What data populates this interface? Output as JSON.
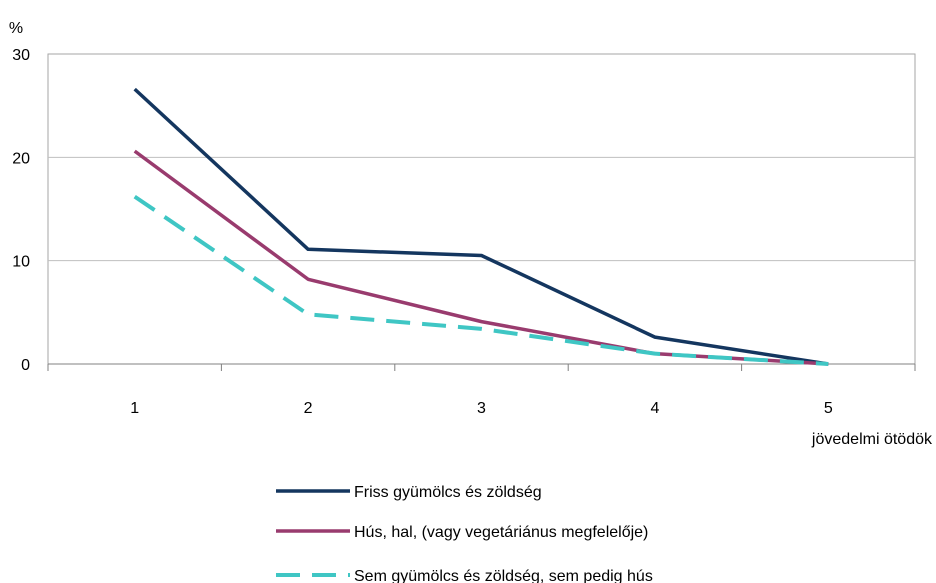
{
  "chart_data": {
    "type": "line",
    "ylabel": "%",
    "xlabel": "jövedelmi ötödök",
    "categories": [
      "1",
      "2",
      "3",
      "4",
      "5"
    ],
    "ylim": [
      0,
      30
    ],
    "yticks": [
      "0",
      "10",
      "20",
      "30"
    ],
    "grid": true,
    "legend_position": "bottom",
    "series": [
      {
        "name": "Friss gyümölcs és zöldség",
        "values": [
          26.6,
          11.1,
          10.5,
          2.6,
          0
        ],
        "color": "#14365f",
        "dash": "solid"
      },
      {
        "name": "Hús, hal, (vagy vegetáriánus megfelelője)",
        "values": [
          20.6,
          8.2,
          4.1,
          1.0,
          0
        ],
        "color": "#993b6e",
        "dash": "solid"
      },
      {
        "name": "Sem gyümölcs és zöldség, sem pedig hús",
        "values": [
          16.2,
          4.8,
          3.4,
          1.0,
          0
        ],
        "color": "#3fc6c4",
        "dash": "dashed"
      }
    ]
  }
}
